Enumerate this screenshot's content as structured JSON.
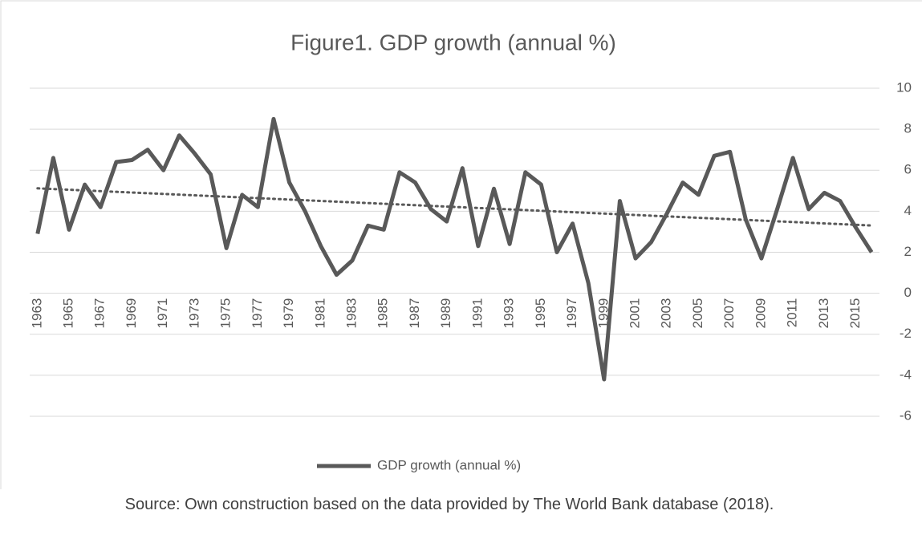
{
  "chart_data": {
    "type": "line",
    "title": "Figure1. GDP growth (annual %)",
    "note": "Source: Own construction based on the data provided by The World Bank database (2018).",
    "categories": [
      "1963",
      null,
      "1965",
      null,
      "1967",
      null,
      "1969",
      null,
      "1971",
      null,
      "1973",
      null,
      "1975",
      null,
      "1977",
      null,
      "1979",
      null,
      "1981",
      null,
      "1983",
      null,
      "1985",
      null,
      "1987",
      null,
      "1989",
      null,
      "1991",
      null,
      "1993",
      null,
      "1995",
      null,
      "1997",
      null,
      "1999",
      null,
      "2001",
      null,
      "2003",
      null,
      "2005",
      null,
      "2007",
      null,
      "2009",
      null,
      "2011",
      null,
      "2013",
      null,
      "2015",
      null
    ],
    "series": [
      {
        "name": "GDP growth (annual %)",
        "color": "#595959",
        "values": [
          2.9,
          6.6,
          3.1,
          5.3,
          4.2,
          6.4,
          6.5,
          7.0,
          6.0,
          7.7,
          6.8,
          5.8,
          2.2,
          4.8,
          4.2,
          8.5,
          5.4,
          4.0,
          2.3,
          0.9,
          1.6,
          3.3,
          3.1,
          5.9,
          5.4,
          4.1,
          3.5,
          6.1,
          2.3,
          5.1,
          2.4,
          5.9,
          5.3,
          2.0,
          3.4,
          0.5,
          -4.2,
          4.5,
          1.7,
          2.5,
          3.9,
          5.4,
          4.8,
          6.7,
          6.9,
          3.6,
          1.7,
          4.1,
          6.6,
          4.1,
          4.9,
          4.5,
          3.2,
          2.0
        ]
      }
    ],
    "trendline": "linear",
    "ylim": [
      -6,
      10
    ],
    "yticks": [
      -6,
      -4,
      -2,
      0,
      2,
      4,
      6,
      8,
      10
    ],
    "grid": true,
    "legend": "bottom"
  }
}
